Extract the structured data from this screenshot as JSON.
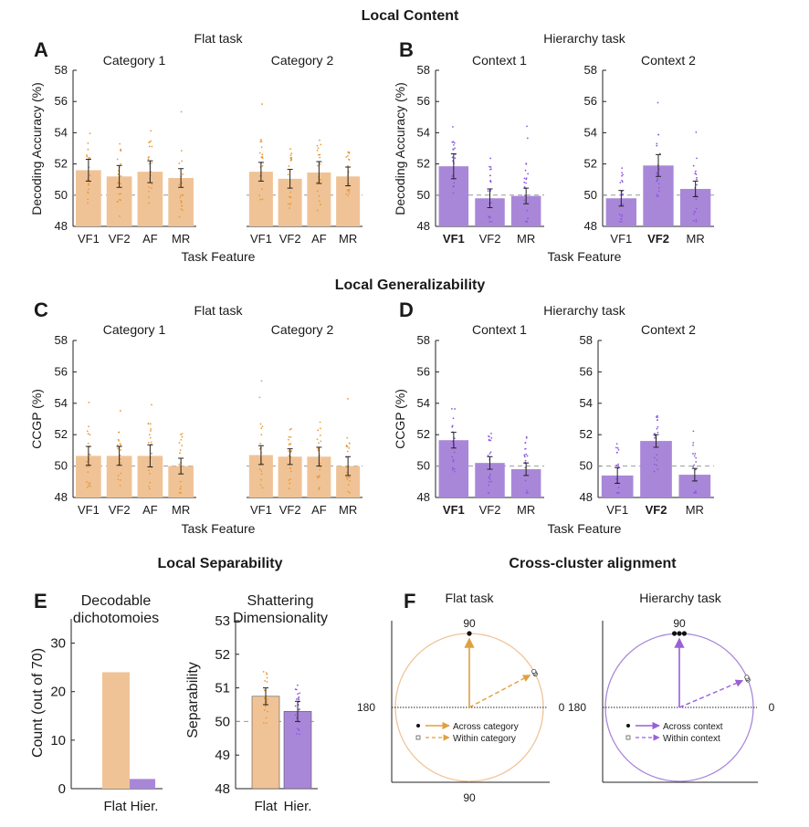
{
  "colors": {
    "flat": "#f0c396",
    "flat_dot": "#ea9b3a",
    "flat_arrow": "#e0a040",
    "hier": "#a987d8",
    "hier_dot": "#8f58e0",
    "hier_arrow": "#9b5fd8",
    "err": "#222222"
  },
  "sections": {
    "local_content": "Local Content",
    "local_generalizability": "Local Generalizability",
    "local_separability": "Local Separability",
    "cross_cluster": "Cross-cluster alignment"
  },
  "panels": {
    "A": {
      "letter": "A",
      "task": "Flat task",
      "xlabel": "Task Feature",
      "ylabel": "Decoding Accuracy (%)",
      "yticks": [
        "48",
        "50",
        "52",
        "54",
        "56",
        "58"
      ]
    },
    "B": {
      "letter": "B",
      "task": "Hierarchy task",
      "xlabel": "Task Feature",
      "ylabel": "Decoding Accuracy (%)",
      "yticks": [
        "48",
        "50",
        "52",
        "54",
        "56",
        "58"
      ]
    },
    "C": {
      "letter": "C",
      "task": "Flat task",
      "xlabel": "Task Feature",
      "ylabel": "CCGP (%)",
      "yticks": [
        "48",
        "50",
        "52",
        "54",
        "56",
        "58"
      ]
    },
    "D": {
      "letter": "D",
      "task": "Hierarchy task",
      "xlabel": "Task Feature",
      "ylabel": "CCGP (%)",
      "yticks": [
        "48",
        "50",
        "52",
        "54",
        "56",
        "58"
      ]
    },
    "E": {
      "letter": "E",
      "left_title_1": "Decodable",
      "left_title_2": "dichotomoies",
      "left_ylabel": "Count (out of 70)",
      "left_yticks": [
        "0",
        "10",
        "20",
        "30"
      ],
      "right_title_1": "Shattering",
      "right_title_2": "Dimensionality",
      "right_ylabel": "Separability",
      "right_yticks": [
        "48",
        "49",
        "50",
        "51",
        "52",
        "53"
      ]
    },
    "F": {
      "letter": "F",
      "flat_title": "Flat task",
      "hier_title": "Hierarchy task",
      "label_90": "90",
      "label_180": "180",
      "label_0": "0",
      "label_bottom_90": "90"
    }
  },
  "chart_data": [
    {
      "id": "A1",
      "type": "bar",
      "title": "Category 1",
      "categories": [
        "VF1",
        "VF2",
        "AF",
        "MR"
      ],
      "values": [
        51.6,
        51.2,
        51.5,
        51.1
      ],
      "errors": [
        0.7,
        0.7,
        0.7,
        0.6
      ],
      "ylim": [
        48,
        58
      ],
      "chance": 50,
      "color": "flat"
    },
    {
      "id": "A2",
      "type": "bar",
      "title": "Category 2",
      "categories": [
        "VF1",
        "VF2",
        "AF",
        "MR"
      ],
      "values": [
        51.5,
        51.05,
        51.45,
        51.2
      ],
      "errors": [
        0.6,
        0.6,
        0.7,
        0.6
      ],
      "ylim": [
        48,
        58
      ],
      "chance": 50,
      "color": "flat"
    },
    {
      "id": "B1",
      "type": "bar",
      "title": "Context 1",
      "categories": [
        "VF1",
        "VF2",
        "MR"
      ],
      "bold": [
        "VF1"
      ],
      "values": [
        51.85,
        49.8,
        49.95
      ],
      "errors": [
        0.8,
        0.6,
        0.5
      ],
      "ylim": [
        48,
        58
      ],
      "chance": 50,
      "color": "hier"
    },
    {
      "id": "B2",
      "type": "bar",
      "title": "Context 2",
      "categories": [
        "VF1",
        "VF2",
        "MR"
      ],
      "bold": [
        "VF2"
      ],
      "values": [
        49.8,
        51.9,
        50.4
      ],
      "errors": [
        0.5,
        0.7,
        0.5
      ],
      "ylim": [
        48,
        58
      ],
      "chance": 50,
      "color": "hier"
    },
    {
      "id": "C1",
      "type": "bar",
      "title": "Category 1",
      "categories": [
        "VF1",
        "VF2",
        "AF",
        "MR"
      ],
      "values": [
        50.65,
        50.65,
        50.65,
        50.0
      ],
      "errors": [
        0.6,
        0.6,
        0.7,
        0.5
      ],
      "ylim": [
        48,
        58
      ],
      "chance": 50,
      "color": "flat"
    },
    {
      "id": "C2",
      "type": "bar",
      "title": "Category 2",
      "categories": [
        "VF1",
        "VF2",
        "AF",
        "MR"
      ],
      "values": [
        50.7,
        50.6,
        50.6,
        50.0
      ],
      "errors": [
        0.6,
        0.5,
        0.6,
        0.6
      ],
      "ylim": [
        48,
        58
      ],
      "chance": 50,
      "color": "flat"
    },
    {
      "id": "D1",
      "type": "bar",
      "title": "Context 1",
      "categories": [
        "VF1",
        "VF2",
        "MR"
      ],
      "bold": [
        "VF1"
      ],
      "values": [
        51.65,
        50.2,
        49.8
      ],
      "errors": [
        0.5,
        0.4,
        0.4
      ],
      "ylim": [
        48,
        58
      ],
      "chance": 50,
      "color": "hier"
    },
    {
      "id": "D2",
      "type": "bar",
      "title": "Context 2",
      "categories": [
        "VF1",
        "VF2",
        "MR"
      ],
      "bold": [
        "VF2"
      ],
      "values": [
        49.4,
        51.6,
        49.45
      ],
      "errors": [
        0.5,
        0.4,
        0.4
      ],
      "ylim": [
        48,
        58
      ],
      "chance": 50,
      "color": "hier"
    },
    {
      "id": "E1",
      "type": "bar",
      "title": "Decodable dichotomoies",
      "categories": [
        "Flat",
        "Hier."
      ],
      "values": [
        24,
        2
      ],
      "ylim": [
        0,
        35
      ],
      "ylabel": "Count (out of 70)"
    },
    {
      "id": "E2",
      "type": "bar",
      "title": "Shattering Dimensionality",
      "categories": [
        "Flat",
        "Hier."
      ],
      "values": [
        50.75,
        50.3
      ],
      "errors": [
        0.25,
        0.3
      ],
      "ylim": [
        48,
        53
      ],
      "chance": 50,
      "ylabel": "Separability"
    },
    {
      "id": "F1",
      "type": "polar",
      "title": "Flat task",
      "across_angles_deg": [
        90
      ],
      "within_angles_deg": [
        28
      ],
      "across_label": "Across category",
      "within_label": "Within category"
    },
    {
      "id": "F2",
      "type": "polar",
      "title": "Hierarchy task",
      "across_angles_deg": [
        90,
        89,
        91
      ],
      "within_angles_deg": [
        23
      ],
      "across_label": "Across context",
      "within_label": "Within context"
    }
  ]
}
